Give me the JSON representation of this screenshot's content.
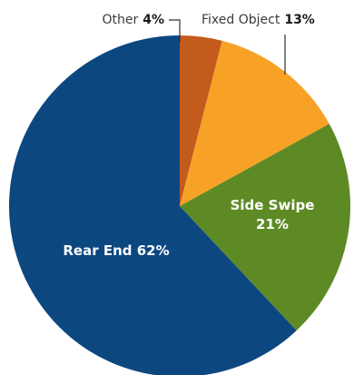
{
  "chart_data": {
    "type": "pie",
    "title": "",
    "start": "12 o'clock",
    "direction": "clockwise",
    "slices": [
      {
        "name": "Other",
        "value": 4,
        "value_label": "4%",
        "label_text": "",
        "color": "#c25b1c",
        "label_position": "outside"
      },
      {
        "name": "Fixed Object",
        "value": 13,
        "value_label": "13%",
        "label_text": "",
        "color": "#f7a227",
        "label_position": "outside"
      },
      {
        "name": "Side Swipe",
        "value": 21,
        "value_label": "21%",
        "label_text": "",
        "color": "#5e8a26",
        "label_position": "inside-two-lines"
      },
      {
        "name": "Rear End",
        "value": 62,
        "value_label": "62%",
        "label_text": "Rear End 62%",
        "color": "#0d4780",
        "label_position": "inside"
      }
    ]
  }
}
